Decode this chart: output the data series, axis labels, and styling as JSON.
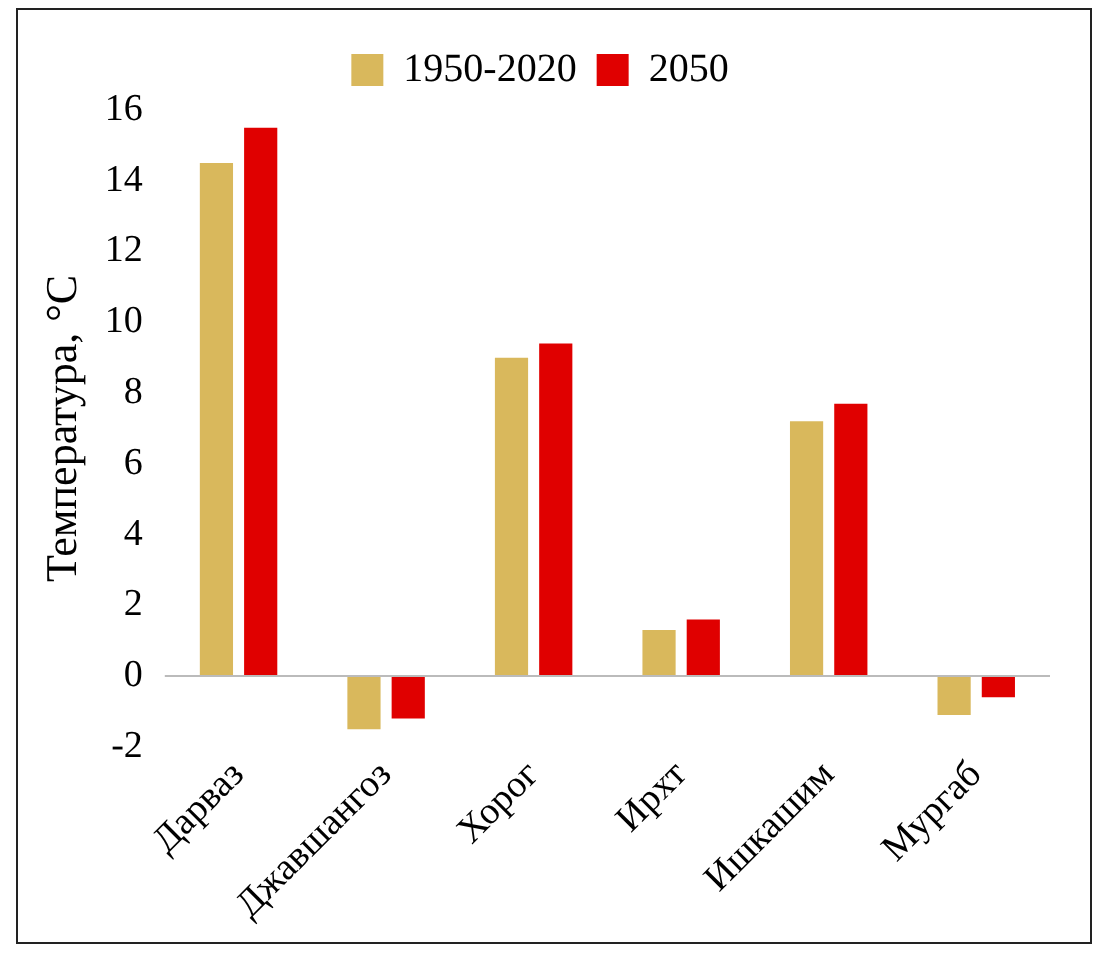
{
  "chart_data": {
    "type": "bar",
    "ylabel": "Температура, °C",
    "categories": [
      "Дарваз",
      "Джавшангоз",
      "Хорог",
      "Ирхт",
      "Ишкашим",
      "Мургаб"
    ],
    "series": [
      {
        "name": "1950-2020",
        "color": "#d9b85c",
        "values": [
          14.5,
          -1.5,
          9.0,
          1.3,
          7.2,
          -1.1
        ]
      },
      {
        "name": "2050",
        "color": "#e00000",
        "values": [
          15.5,
          -1.2,
          9.4,
          1.6,
          7.7,
          -0.6
        ]
      }
    ],
    "ylim": [
      -2,
      16
    ],
    "yticks": [
      -2,
      0,
      2,
      4,
      6,
      8,
      10,
      12,
      14,
      16
    ],
    "grid": false,
    "legend": "top"
  }
}
